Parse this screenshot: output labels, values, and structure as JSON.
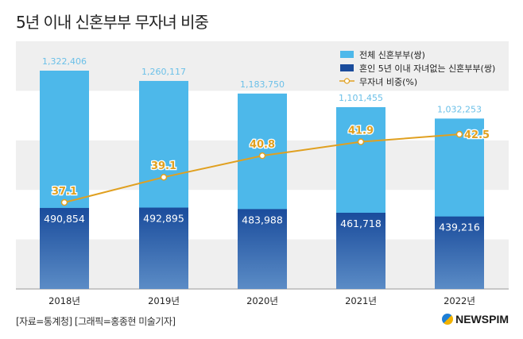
{
  "title": "5년 이내 신혼부부 무자녀 비중",
  "source": "[자료=통계청] [그래픽=홍종현 미술기자]",
  "logo": "NEWSPIM",
  "colors": {
    "total": "#4db8ea",
    "childless_top": "#1a4c9c",
    "childless_bottom": "#5b8cc6",
    "ratio": "#e0a020",
    "band": "#efefef"
  },
  "chart_data": {
    "type": "bar",
    "categories": [
      "2018년",
      "2019년",
      "2020년",
      "2021년",
      "2022년"
    ],
    "series": [
      {
        "name": "전체 신혼부부(쌍)",
        "values": [
          1322406,
          1260117,
          1183750,
          1101455,
          1032253
        ],
        "labels": [
          "1,322,406",
          "1,260,117",
          "1,183,750",
          "1,101,455",
          "1,032,253"
        ]
      },
      {
        "name": "혼인 5년 이내 자녀없는 신혼부부(쌍)",
        "values": [
          490854,
          492895,
          483988,
          461718,
          439216
        ],
        "labels": [
          "490,854",
          "492,895",
          "483,988",
          "461,718",
          "439,216"
        ]
      },
      {
        "name": "무자녀 비중(%)",
        "type": "line",
        "values": [
          37.1,
          39.1,
          40.8,
          41.9,
          42.5
        ],
        "labels": [
          "37.1",
          "39.1",
          "40.8",
          "41.9",
          "42.5"
        ]
      }
    ],
    "legend": "top-right",
    "grid": "alternating horizontal bands"
  }
}
